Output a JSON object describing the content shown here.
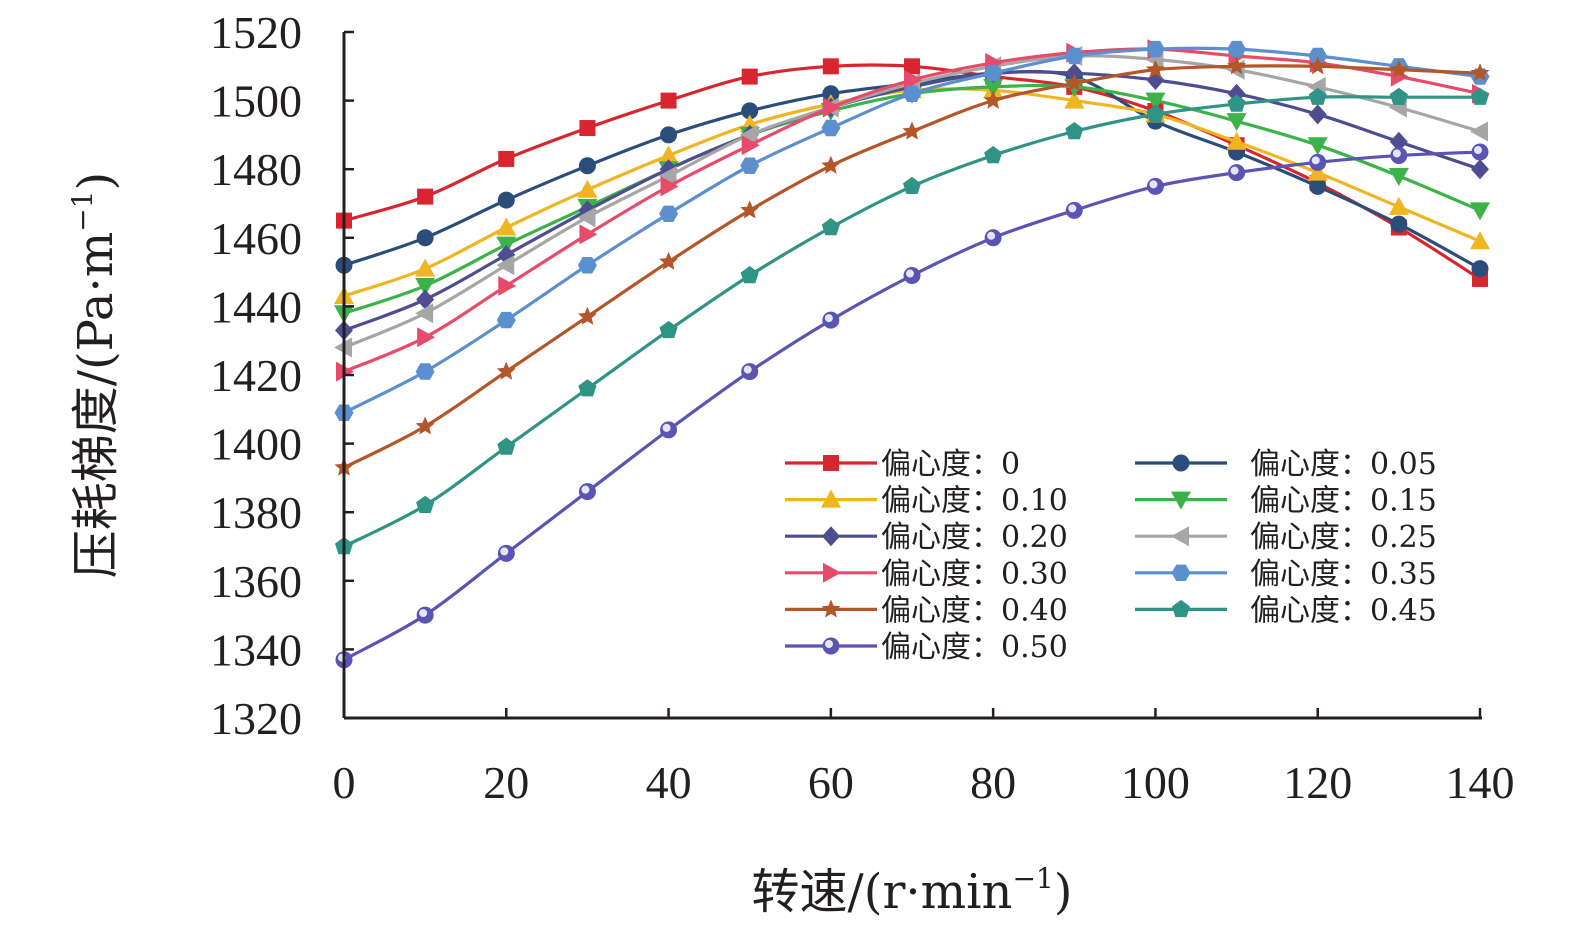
{
  "chart_data": {
    "type": "line",
    "title": "",
    "xlabel": "转速/(r·min",
    "xlabel_sup": "−1",
    "xlabel_end": ")",
    "ylabel": "压耗梯度/(Pa·m",
    "ylabel_sup": "−1",
    "ylabel_end": ")",
    "xlim": [
      0,
      140
    ],
    "ylim": [
      1320,
      1520
    ],
    "xticks": [
      0,
      20,
      40,
      60,
      80,
      100,
      120,
      140
    ],
    "yticks": [
      1320,
      1340,
      1360,
      1380,
      1400,
      1420,
      1440,
      1460,
      1480,
      1500,
      1520
    ],
    "grid": false,
    "legend_position": "lower-right",
    "x": [
      0,
      10,
      20,
      30,
      40,
      50,
      60,
      70,
      80,
      90,
      100,
      110,
      120,
      130,
      140
    ],
    "series": [
      {
        "name": "偏心度：0",
        "color": "#d7262f",
        "marker": "square",
        "values": [
          1465,
          1472,
          1483,
          1492,
          1500,
          1507,
          1510,
          1510,
          1507,
          1504,
          1497,
          1487,
          1476,
          1463,
          1448
        ]
      },
      {
        "name": "偏心度：0.05",
        "color": "#2b4d7a",
        "marker": "circle",
        "values": [
          1452,
          1460,
          1471,
          1481,
          1490,
          1497,
          1502,
          1505,
          1508,
          1507,
          1494,
          1485,
          1475,
          1464,
          1451
        ]
      },
      {
        "name": "偏心度：0.10",
        "color": "#f1b522",
        "marker": "triangle-up",
        "values": [
          1443,
          1451,
          1463,
          1474,
          1484,
          1493,
          1499,
          1503,
          1503,
          1500,
          1496,
          1488,
          1479,
          1469,
          1459
        ]
      },
      {
        "name": "偏心度：0.15",
        "color": "#3bb24a",
        "marker": "triangle-down",
        "values": [
          1438,
          1446,
          1458,
          1469,
          1480,
          1490,
          1497,
          1502,
          1504,
          1504,
          1500,
          1494,
          1487,
          1478,
          1468
        ]
      },
      {
        "name": "偏心度：0.20",
        "color": "#4e4d8f",
        "marker": "diamond",
        "values": [
          1433,
          1442,
          1455,
          1468,
          1480,
          1490,
          1498,
          1504,
          1508,
          1508,
          1506,
          1502,
          1496,
          1488,
          1480
        ]
      },
      {
        "name": "偏心度：0.25",
        "color": "#a6a6a6",
        "marker": "triangle-left",
        "values": [
          1428,
          1438,
          1452,
          1466,
          1478,
          1490,
          1498,
          1505,
          1510,
          1513,
          1512,
          1509,
          1504,
          1498,
          1491
        ]
      },
      {
        "name": "偏心度：0.30",
        "color": "#e74b6a",
        "marker": "triangle-right",
        "values": [
          1421,
          1431,
          1446,
          1461,
          1475,
          1487,
          1498,
          1506,
          1511,
          1514,
          1515,
          1513,
          1511,
          1507,
          1502
        ]
      },
      {
        "name": "偏心度：0.35",
        "color": "#5c8fce",
        "marker": "hexagon",
        "values": [
          1409,
          1421,
          1436,
          1452,
          1467,
          1481,
          1492,
          1502,
          1508,
          1513,
          1515,
          1515,
          1513,
          1510,
          1507
        ]
      },
      {
        "name": "偏心度：0.40",
        "color": "#b4562a",
        "marker": "star",
        "values": [
          1393,
          1405,
          1421,
          1437,
          1453,
          1468,
          1481,
          1491,
          1500,
          1505,
          1509,
          1510,
          1510,
          1509,
          1508
        ]
      },
      {
        "name": "偏心度：0.45",
        "color": "#2f9486",
        "marker": "pentagon",
        "values": [
          1370,
          1382,
          1399,
          1416,
          1433,
          1449,
          1463,
          1475,
          1484,
          1491,
          1496,
          1499,
          1501,
          1501,
          1501
        ]
      },
      {
        "name": "偏心度：0.50",
        "color": "#5a54b2",
        "marker": "sphere",
        "values": [
          1337,
          1350,
          1368,
          1386,
          1404,
          1421,
          1436,
          1449,
          1460,
          1468,
          1475,
          1479,
          1482,
          1484,
          1485
        ]
      }
    ],
    "legend_order": [
      0,
      1,
      2,
      3,
      4,
      5,
      6,
      7,
      8,
      9,
      10
    ]
  }
}
